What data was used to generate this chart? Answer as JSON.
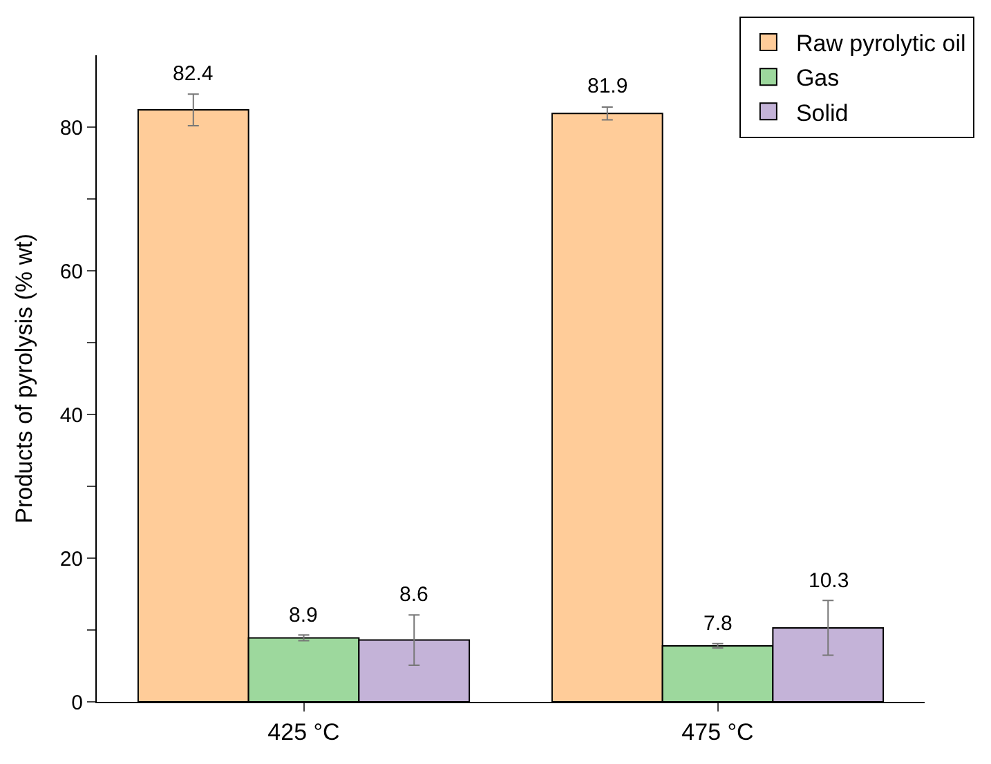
{
  "chart_data": {
    "type": "bar",
    "ylabel": "Products of pyrolysis (% wt)",
    "categories": [
      "425 °C",
      "475 °C"
    ],
    "series": [
      {
        "name": "Raw pyrolytic oil",
        "color": "#ffcc99",
        "values": [
          82.4,
          81.9
        ],
        "errors": [
          2.2,
          0.9
        ]
      },
      {
        "name": "Gas",
        "color": "#9dd89d",
        "values": [
          8.9,
          7.8
        ],
        "errors": [
          0.4,
          0.3
        ]
      },
      {
        "name": "Solid",
        "color": "#c4b3d8",
        "values": [
          8.6,
          10.3
        ],
        "errors": [
          3.5,
          3.8
        ]
      }
    ],
    "ylim": [
      0,
      90
    ],
    "yticks": [
      0,
      {
        "value": 10,
        "label": null
      },
      20,
      {
        "value": 30,
        "label": null
      },
      40,
      {
        "value": 50,
        "label": null
      },
      60,
      {
        "value": 70,
        "label": null
      },
      80
    ],
    "data_labels": true,
    "legend": "top right"
  }
}
